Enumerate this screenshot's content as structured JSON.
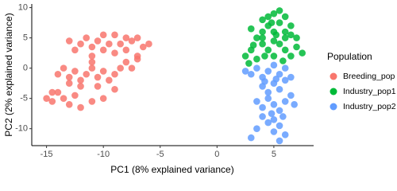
{
  "chart_data": {
    "type": "scatter",
    "x_label": "PC1 (8% explained variance)",
    "y_label": "PC2 (2% explained variance)",
    "legend_title": "Population",
    "legend_position": "right",
    "xlim": [
      -16.3,
      8.5
    ],
    "ylim": [
      -12.8,
      10.6
    ],
    "xticks": [
      -15,
      -10,
      -5,
      0,
      5
    ],
    "yticks": [
      -10,
      -5,
      0,
      5,
      10
    ],
    "series": [
      {
        "name": "Breeding_pop",
        "color": "#F8766D",
        "x": [
          -12,
          -11.5,
          -11,
          -10.5,
          -10,
          -9.5,
          -9,
          -8.5,
          -8,
          -7.5,
          -7,
          -6.5,
          -12.5,
          -11,
          -13,
          -9,
          -8,
          -10,
          -7,
          -6,
          -14,
          -13.5,
          -13,
          -12.5,
          -12,
          -11.5,
          -11,
          -10.5,
          -10,
          -9.5,
          -9,
          -8.5,
          -8,
          -7.5,
          -7,
          -12,
          -10.5,
          -9,
          -13,
          -11,
          -15,
          -14.5,
          -14,
          -13.5,
          -13,
          -12,
          -11,
          -12.5,
          -10,
          -14.5
        ],
        "y": [
          4,
          5,
          3.5,
          4.5,
          3,
          4,
          5.5,
          4,
          3,
          4.5,
          5,
          3.5,
          3,
          2,
          4.5,
          2.5,
          5,
          5.5,
          2,
          4,
          -1,
          0,
          -1.5,
          -0.5,
          -2,
          -1,
          0,
          -1.5,
          -0.5,
          -2,
          -1,
          0,
          1,
          0,
          1.5,
          -3,
          -3,
          -3.5,
          -2.5,
          1,
          -5,
          -5.5,
          -4,
          -5,
          -6,
          -6.5,
          -5.5,
          -4.5,
          -5,
          -4
        ]
      },
      {
        "name": "Industry_pop1",
        "color": "#00BA38",
        "x": [
          2.5,
          3,
          3.5,
          4,
          4.5,
          5,
          5.5,
          6,
          6.5,
          7,
          7.5,
          3.5,
          4,
          4.5,
          5,
          5.5,
          6,
          4.5,
          5,
          5.5,
          6,
          3,
          4,
          5,
          6,
          6.5,
          7,
          2.8,
          4.2,
          5.8,
          3.2,
          4.8,
          6.5,
          4,
          5.2
        ],
        "y": [
          2,
          3,
          1.5,
          4,
          3,
          2,
          4,
          3,
          2,
          3.5,
          2.5,
          5,
          6,
          7,
          6,
          7.5,
          6,
          8.5,
          9,
          9.5,
          8.5,
          6.5,
          5,
          4.5,
          5,
          5.5,
          5,
          0.8,
          2,
          1.2,
          3.8,
          7.5,
          7,
          8,
          5.5
        ]
      },
      {
        "name": "Industry_pop2",
        "color": "#619CFF",
        "x": [
          3,
          3.5,
          4,
          4.5,
          5,
          5.5,
          6,
          6.5,
          4,
          4.5,
          5,
          5.5,
          6,
          3.5,
          4,
          4.5,
          5,
          5.5,
          6,
          6.5,
          4,
          4.5,
          5,
          5.5,
          3.5,
          5,
          5.5,
          6,
          3,
          4.8,
          6.8,
          2.5,
          5.2,
          4.2,
          5.8
        ],
        "y": [
          -1,
          0,
          -1.5,
          -0.5,
          0.5,
          -1,
          0,
          -1.5,
          -3,
          -4,
          -2.5,
          -3.5,
          -2,
          -5.5,
          -6.5,
          -5,
          -6,
          -7,
          -5.5,
          -4.5,
          -8,
          -9,
          -8.5,
          -9.5,
          -10,
          -10.5,
          -12,
          -11,
          -11.5,
          -7.5,
          -6,
          -0.5,
          -1.8,
          -2.2,
          -8
        ]
      }
    ]
  }
}
